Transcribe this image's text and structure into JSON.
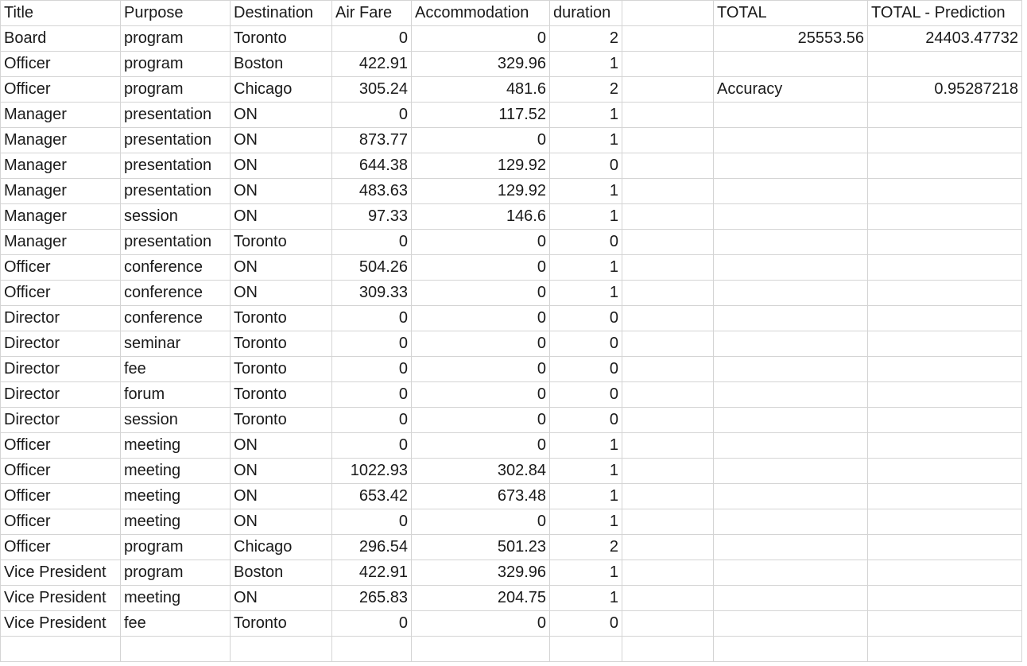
{
  "columns": [
    "Title",
    "Purpose",
    "Destination",
    "Air Fare",
    "Accommodation",
    "duration",
    "",
    "TOTAL",
    "TOTAL - Prediction"
  ],
  "rows": [
    [
      "Board",
      "program",
      "Toronto",
      "0",
      "0",
      "2",
      "",
      "25553.56",
      "24403.47732"
    ],
    [
      "Officer",
      "program",
      "Boston",
      "422.91",
      "329.96",
      "1",
      "",
      "",
      ""
    ],
    [
      "Officer",
      "program",
      "Chicago",
      "305.24",
      "481.6",
      "2",
      "",
      "Accuracy",
      "0.95287218"
    ],
    [
      "Manager",
      "presentation",
      "ON",
      "0",
      "117.52",
      "1",
      "",
      "",
      ""
    ],
    [
      "Manager",
      "presentation",
      "ON",
      "873.77",
      "0",
      "1",
      "",
      "",
      ""
    ],
    [
      "Manager",
      "presentation",
      "ON",
      "644.38",
      "129.92",
      "0",
      "",
      "",
      ""
    ],
    [
      "Manager",
      "presentation",
      "ON",
      "483.63",
      "129.92",
      "1",
      "",
      "",
      ""
    ],
    [
      "Manager",
      "session",
      "ON",
      "97.33",
      "146.6",
      "1",
      "",
      "",
      ""
    ],
    [
      "Manager",
      "presentation",
      "Toronto",
      "0",
      "0",
      "0",
      "",
      "",
      ""
    ],
    [
      "Officer",
      "conference",
      "ON",
      "504.26",
      "0",
      "1",
      "",
      "",
      ""
    ],
    [
      "Officer",
      "conference",
      "ON",
      "309.33",
      "0",
      "1",
      "",
      "",
      ""
    ],
    [
      "Director",
      "conference",
      "Toronto",
      "0",
      "0",
      "0",
      "",
      "",
      ""
    ],
    [
      "Director",
      "seminar",
      "Toronto",
      "0",
      "0",
      "0",
      "",
      "",
      ""
    ],
    [
      "Director",
      "fee",
      "Toronto",
      "0",
      "0",
      "0",
      "",
      "",
      ""
    ],
    [
      "Director",
      "forum",
      "Toronto",
      "0",
      "0",
      "0",
      "",
      "",
      ""
    ],
    [
      "Director",
      "session",
      "Toronto",
      "0",
      "0",
      "0",
      "",
      "",
      ""
    ],
    [
      "Officer",
      "meeting",
      "ON",
      "0",
      "0",
      "1",
      "",
      "",
      ""
    ],
    [
      "Officer",
      "meeting",
      "ON",
      "1022.93",
      "302.84",
      "1",
      "",
      "",
      ""
    ],
    [
      "Officer",
      "meeting",
      "ON",
      "653.42",
      "673.48",
      "1",
      "",
      "",
      ""
    ],
    [
      "Officer",
      "meeting",
      "ON",
      "0",
      "0",
      "1",
      "",
      "",
      ""
    ],
    [
      "Officer",
      "program",
      "Chicago",
      "296.54",
      "501.23",
      "2",
      "",
      "",
      ""
    ],
    [
      "Vice President",
      "program",
      "Boston",
      "422.91",
      "329.96",
      "1",
      "",
      "",
      ""
    ],
    [
      "Vice President",
      "meeting",
      "ON",
      "265.83",
      "204.75",
      "1",
      "",
      "",
      ""
    ],
    [
      "Vice President",
      "fee",
      "Toronto",
      "0",
      "0",
      "0",
      "",
      "",
      ""
    ],
    [
      "",
      "",
      "",
      "",
      "",
      "",
      "",
      "",
      ""
    ]
  ]
}
